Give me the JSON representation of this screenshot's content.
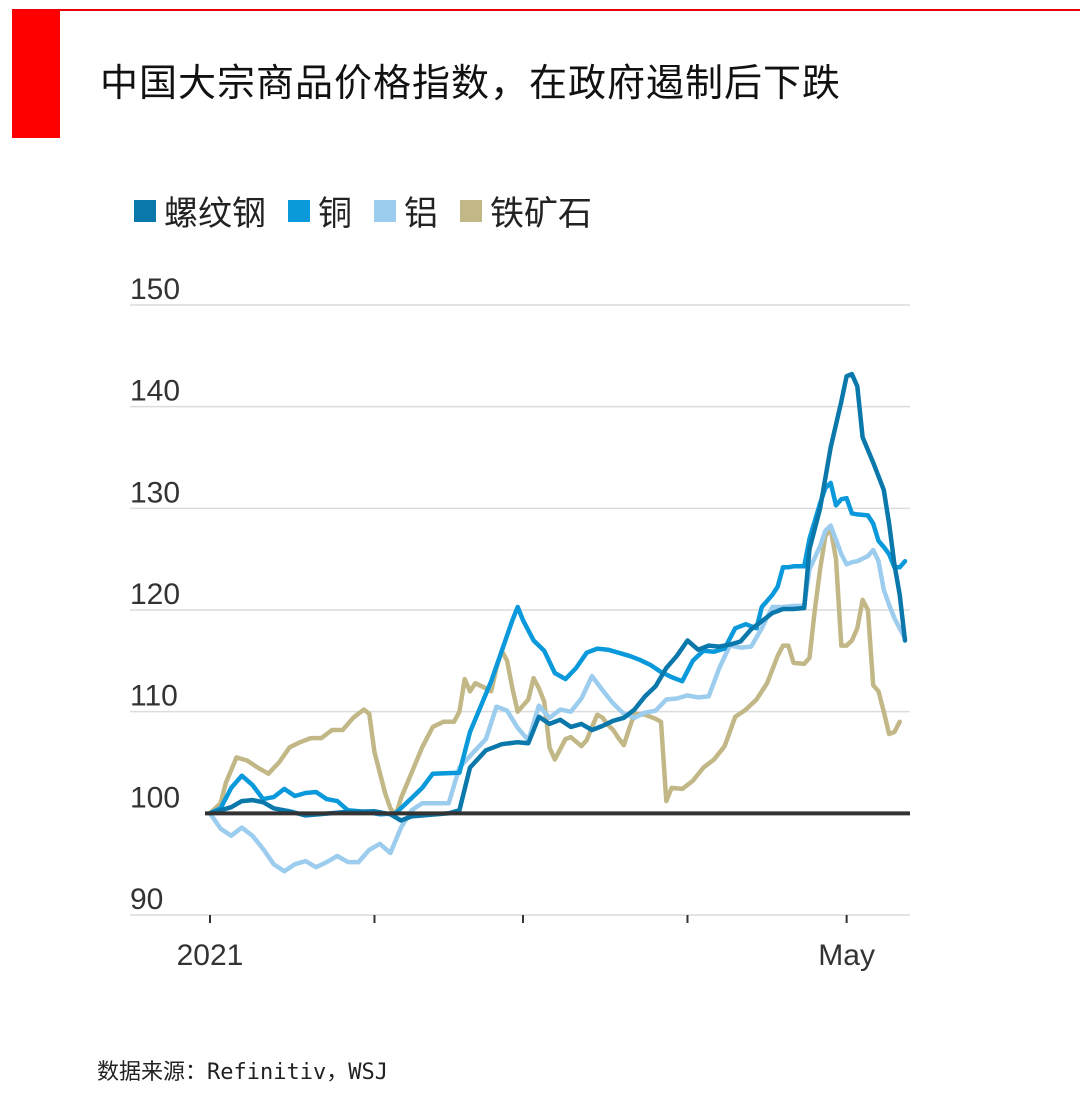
{
  "title": "中国大宗商品价格指数，在政府遏制后下跌",
  "source": "数据来源：Refinitiv，WSJ",
  "colors": {
    "accent_red": "#ff0000",
    "rebar": "#0b78ac",
    "copper": "#0a9adb",
    "aluminum": "#9ccdee",
    "iron_ore": "#c2b887",
    "baseline": "#333333",
    "grid": "#dcdcdc"
  },
  "chart_data": {
    "type": "line",
    "ylim": [
      90,
      150
    ],
    "yticks": [
      "90",
      "100",
      "110",
      "120",
      "130",
      "140",
      "150"
    ],
    "xlim": [
      0,
      131
    ],
    "x_tick_positions": [
      0,
      31,
      59,
      90,
      120
    ],
    "x_tick_labels": [
      "2021",
      "",
      "",
      "",
      "May"
    ],
    "baseline": 100,
    "grid": true,
    "legend_position": "top-left",
    "series": [
      {
        "name": "螺纹钢",
        "color": "#0b78ac",
        "points": [
          [
            0,
            100
          ],
          [
            4,
            100.6
          ],
          [
            6,
            101.2
          ],
          [
            8,
            101.3
          ],
          [
            10,
            101.1
          ],
          [
            12,
            100.5
          ],
          [
            15,
            100.2
          ],
          [
            18,
            99.8
          ],
          [
            25,
            100.1
          ],
          [
            31,
            100.2
          ],
          [
            34,
            99.9
          ],
          [
            36,
            99.3
          ],
          [
            38,
            99.7
          ],
          [
            45,
            100
          ],
          [
            47,
            100.3
          ],
          [
            49,
            104.5
          ],
          [
            52,
            106.2
          ],
          [
            55,
            106.8
          ],
          [
            58,
            107
          ],
          [
            60,
            106.9
          ],
          [
            62,
            109.5
          ],
          [
            64,
            108.8
          ],
          [
            66,
            109.2
          ],
          [
            68,
            108.5
          ],
          [
            70,
            108.8
          ],
          [
            72,
            108.2
          ],
          [
            74,
            108.6
          ],
          [
            76,
            109.1
          ],
          [
            78,
            109.4
          ],
          [
            80,
            110.2
          ],
          [
            82,
            111.5
          ],
          [
            84,
            112.5
          ],
          [
            86,
            114.3
          ],
          [
            88,
            115.5
          ],
          [
            90,
            117
          ],
          [
            92,
            116.1
          ],
          [
            94,
            116.5
          ],
          [
            96,
            116.4
          ],
          [
            98,
            116.6
          ],
          [
            100,
            116.9
          ],
          [
            102,
            118.1
          ],
          [
            104,
            118.9
          ],
          [
            106,
            119.7
          ],
          [
            108,
            120.1
          ],
          [
            110,
            120.1
          ],
          [
            112,
            120.2
          ],
          [
            113,
            126
          ],
          [
            115,
            130
          ],
          [
            117,
            136
          ],
          [
            119,
            140.5
          ],
          [
            120,
            143
          ],
          [
            121,
            143.2
          ],
          [
            122,
            142
          ],
          [
            123,
            137
          ],
          [
            125,
            134.5
          ],
          [
            127,
            131.8
          ],
          [
            128,
            128.5
          ],
          [
            129,
            124.5
          ],
          [
            130,
            121.5
          ],
          [
            131,
            117
          ]
        ]
      },
      {
        "name": "铜",
        "color": "#0a9adb",
        "points": [
          [
            0,
            100
          ],
          [
            2,
            100.5
          ],
          [
            4,
            102.5
          ],
          [
            6,
            103.7
          ],
          [
            8,
            102.8
          ],
          [
            10,
            101.4
          ],
          [
            12,
            101.6
          ],
          [
            14,
            102.4
          ],
          [
            16,
            101.7
          ],
          [
            18,
            102
          ],
          [
            20,
            102.1
          ],
          [
            22,
            101.4
          ],
          [
            24,
            101.2
          ],
          [
            26,
            100.3
          ],
          [
            30,
            100.1
          ],
          [
            32,
            99.9
          ],
          [
            35,
            100
          ],
          [
            38,
            101.5
          ],
          [
            40,
            102.5
          ],
          [
            42,
            103.9
          ],
          [
            47,
            104
          ],
          [
            49,
            108
          ],
          [
            51,
            110.5
          ],
          [
            53,
            113
          ],
          [
            55,
            116
          ],
          [
            57,
            119
          ],
          [
            58,
            120.3
          ],
          [
            59,
            119
          ],
          [
            61,
            117
          ],
          [
            63,
            116
          ],
          [
            65,
            113.8
          ],
          [
            67,
            113.2
          ],
          [
            69,
            114.3
          ],
          [
            71,
            115.8
          ],
          [
            73,
            116.2
          ],
          [
            75,
            116.1
          ],
          [
            77,
            115.8
          ],
          [
            79,
            115.5
          ],
          [
            81,
            115.1
          ],
          [
            83,
            114.6
          ],
          [
            85,
            113.9
          ],
          [
            87,
            113.4
          ],
          [
            89,
            113
          ],
          [
            91,
            115
          ],
          [
            93,
            116
          ],
          [
            95,
            115.9
          ],
          [
            97,
            116.2
          ],
          [
            99,
            118.2
          ],
          [
            101,
            118.6
          ],
          [
            103,
            118.2
          ],
          [
            104,
            120.3
          ],
          [
            106,
            121.5
          ],
          [
            107,
            122.3
          ],
          [
            108,
            124.2
          ],
          [
            109,
            124.2
          ],
          [
            110,
            124.3
          ],
          [
            112,
            124.3
          ],
          [
            113,
            127
          ],
          [
            115,
            130.5
          ],
          [
            116,
            132
          ],
          [
            117,
            132.5
          ],
          [
            118,
            130.3
          ],
          [
            119,
            130.9
          ],
          [
            120,
            131
          ],
          [
            121,
            129.5
          ],
          [
            122,
            129.4
          ],
          [
            124,
            129.3
          ],
          [
            125,
            128.5
          ],
          [
            126,
            126.8
          ],
          [
            127,
            126.2
          ],
          [
            128,
            125.5
          ],
          [
            129,
            124.2
          ],
          [
            130,
            124.2
          ],
          [
            131,
            124.8
          ]
        ]
      },
      {
        "name": "铝",
        "color": "#9ccdee",
        "points": [
          [
            0,
            100
          ],
          [
            2,
            98.5
          ],
          [
            4,
            97.8
          ],
          [
            6,
            98.6
          ],
          [
            8,
            97.8
          ],
          [
            10,
            96.5
          ],
          [
            12,
            95
          ],
          [
            14,
            94.3
          ],
          [
            16,
            95
          ],
          [
            18,
            95.3
          ],
          [
            20,
            94.7
          ],
          [
            22,
            95.2
          ],
          [
            24,
            95.8
          ],
          [
            26,
            95.2
          ],
          [
            28,
            95.2
          ],
          [
            30,
            96.4
          ],
          [
            32,
            97
          ],
          [
            34,
            96.1
          ],
          [
            36,
            98.6
          ],
          [
            38,
            100.3
          ],
          [
            40,
            101
          ],
          [
            45,
            101
          ],
          [
            47,
            104.5
          ],
          [
            50,
            106.2
          ],
          [
            52,
            107.3
          ],
          [
            54,
            110.5
          ],
          [
            56,
            110.1
          ],
          [
            58,
            108.4
          ],
          [
            60,
            107.2
          ],
          [
            62,
            110.6
          ],
          [
            64,
            109.4
          ],
          [
            66,
            110.2
          ],
          [
            68,
            110
          ],
          [
            70,
            111.3
          ],
          [
            72,
            113.5
          ],
          [
            74,
            112.1
          ],
          [
            76,
            110.8
          ],
          [
            78,
            109.8
          ],
          [
            80,
            109.4
          ],
          [
            82,
            109.9
          ],
          [
            84,
            110.1
          ],
          [
            86,
            111.2
          ],
          [
            88,
            111.3
          ],
          [
            90,
            111.6
          ],
          [
            92,
            111.4
          ],
          [
            94,
            111.5
          ],
          [
            96,
            114.3
          ],
          [
            98,
            116.5
          ],
          [
            100,
            116.3
          ],
          [
            102,
            116.4
          ],
          [
            104,
            118.2
          ],
          [
            106,
            120.3
          ],
          [
            108,
            120.3
          ],
          [
            110,
            120.4
          ],
          [
            112,
            120.4
          ],
          [
            113,
            124
          ],
          [
            115,
            126.3
          ],
          [
            116,
            127.8
          ],
          [
            117,
            128.3
          ],
          [
            118,
            126.9
          ],
          [
            119,
            125.5
          ],
          [
            120,
            124.5
          ],
          [
            121,
            124.7
          ],
          [
            122,
            124.8
          ],
          [
            124,
            125.3
          ],
          [
            125,
            125.9
          ],
          [
            126,
            124.8
          ],
          [
            127,
            122
          ],
          [
            128,
            120.5
          ],
          [
            129,
            119.2
          ],
          [
            131,
            117.2
          ]
        ]
      },
      {
        "name": "铁矿石",
        "color": "#c2b887",
        "points": [
          [
            0,
            100
          ],
          [
            2,
            101
          ],
          [
            3,
            103
          ],
          [
            5,
            105.5
          ],
          [
            7,
            105.2
          ],
          [
            9,
            104.5
          ],
          [
            11,
            103.9
          ],
          [
            13,
            105
          ],
          [
            15,
            106.5
          ],
          [
            17,
            107
          ],
          [
            19,
            107.4
          ],
          [
            21,
            107.4
          ],
          [
            23,
            108.2
          ],
          [
            25,
            108.2
          ],
          [
            27,
            109.4
          ],
          [
            28,
            109.8
          ],
          [
            29,
            110.2
          ],
          [
            30,
            109.8
          ],
          [
            31,
            106
          ],
          [
            33,
            102
          ],
          [
            34,
            100.5
          ],
          [
            35,
            99.8
          ],
          [
            36,
            101.5
          ],
          [
            38,
            104
          ],
          [
            40,
            106.5
          ],
          [
            42,
            108.5
          ],
          [
            44,
            109
          ],
          [
            46,
            109
          ],
          [
            47,
            110
          ],
          [
            48,
            113.2
          ],
          [
            49,
            112
          ],
          [
            50,
            112.8
          ],
          [
            52,
            112.3
          ],
          [
            53,
            112
          ],
          [
            54,
            114.3
          ],
          [
            55,
            116
          ],
          [
            56,
            115
          ],
          [
            57,
            112.3
          ],
          [
            58,
            110
          ],
          [
            60,
            111.2
          ],
          [
            61,
            113.3
          ],
          [
            62,
            112.3
          ],
          [
            63,
            111
          ],
          [
            64,
            106.5
          ],
          [
            65,
            105.3
          ],
          [
            67,
            107.3
          ],
          [
            68,
            107.5
          ],
          [
            70,
            106.6
          ],
          [
            71,
            107.2
          ],
          [
            72,
            108.5
          ],
          [
            73,
            109.7
          ],
          [
            74,
            109.4
          ],
          [
            75,
            108.7
          ],
          [
            76,
            108.2
          ],
          [
            77,
            107.4
          ],
          [
            78,
            106.7
          ],
          [
            79,
            108.3
          ],
          [
            80,
            109.8
          ],
          [
            82,
            109.7
          ],
          [
            84,
            109.3
          ],
          [
            85,
            109
          ],
          [
            86,
            101.2
          ],
          [
            87,
            102.5
          ],
          [
            89,
            102.4
          ],
          [
            91,
            103.2
          ],
          [
            93,
            104.5
          ],
          [
            95,
            105.3
          ],
          [
            97,
            106.6
          ],
          [
            99,
            109.5
          ],
          [
            101,
            110.2
          ],
          [
            103,
            111.2
          ],
          [
            105,
            112.8
          ],
          [
            107,
            115.5
          ],
          [
            108,
            116.5
          ],
          [
            109,
            116.5
          ],
          [
            110,
            114.8
          ],
          [
            112,
            114.7
          ],
          [
            113,
            115.3
          ],
          [
            114,
            120
          ],
          [
            115,
            124
          ],
          [
            116,
            127.3
          ],
          [
            117,
            128
          ],
          [
            118,
            125
          ],
          [
            119,
            116.5
          ],
          [
            120,
            116.5
          ],
          [
            121,
            117
          ],
          [
            122,
            118.2
          ],
          [
            123,
            121
          ],
          [
            124,
            120
          ],
          [
            125,
            112.6
          ],
          [
            126,
            112
          ],
          [
            127,
            110
          ],
          [
            128,
            107.8
          ],
          [
            129,
            108
          ],
          [
            130,
            109
          ]
        ]
      }
    ]
  }
}
